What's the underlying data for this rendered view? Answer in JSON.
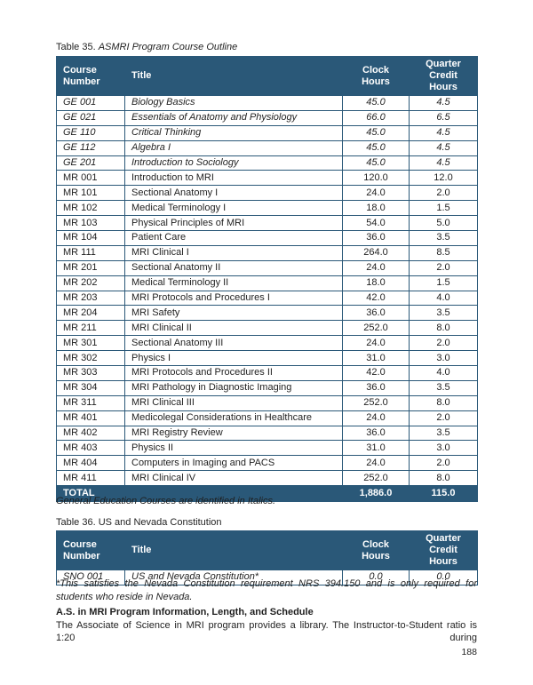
{
  "colors": {
    "header_bg": "#2a5878",
    "header_text": "#ffffff",
    "border": "#2a5878",
    "body_text": "#1f1f1f"
  },
  "table35": {
    "caption_prefix": "Table 35. ",
    "caption_title": "ASMRI Program Course Outline",
    "columns": [
      "Course Number",
      "Title",
      "Clock Hours",
      "Quarter Credit Hours"
    ],
    "rows": [
      {
        "course": "GE 001",
        "title": "Biology Basics",
        "clock": "45.0",
        "credit": "4.5",
        "italic": true
      },
      {
        "course": "GE 021",
        "title": "Essentials of Anatomy and Physiology",
        "clock": "66.0",
        "credit": "6.5",
        "italic": true
      },
      {
        "course": "GE 110",
        "title": "Critical Thinking",
        "clock": "45.0",
        "credit": "4.5",
        "italic": true
      },
      {
        "course": "GE 112",
        "title": "Algebra I",
        "clock": "45.0",
        "credit": "4.5",
        "italic": true
      },
      {
        "course": "GE 201",
        "title": "Introduction to Sociology",
        "clock": "45.0",
        "credit": "4.5",
        "italic": true
      },
      {
        "course": "MR 001",
        "title": "Introduction to MRI",
        "clock": "120.0",
        "credit": "12.0",
        "italic": false
      },
      {
        "course": "MR 101",
        "title": "Sectional Anatomy I",
        "clock": "24.0",
        "credit": "2.0",
        "italic": false
      },
      {
        "course": "MR 102",
        "title": "Medical Terminology I",
        "clock": "18.0",
        "credit": "1.5",
        "italic": false
      },
      {
        "course": "MR 103",
        "title": "Physical Principles of MRI",
        "clock": "54.0",
        "credit": "5.0",
        "italic": false
      },
      {
        "course": "MR 104",
        "title": "Patient Care",
        "clock": "36.0",
        "credit": "3.5",
        "italic": false
      },
      {
        "course": "MR 111",
        "title": "MRI Clinical I",
        "clock": "264.0",
        "credit": "8.5",
        "italic": false
      },
      {
        "course": "MR 201",
        "title": "Sectional Anatomy II",
        "clock": "24.0",
        "credit": "2.0",
        "italic": false
      },
      {
        "course": "MR 202",
        "title": "Medical Terminology II",
        "clock": "18.0",
        "credit": "1.5",
        "italic": false
      },
      {
        "course": "MR 203",
        "title": "MRI Protocols and Procedures I",
        "clock": "42.0",
        "credit": "4.0",
        "italic": false
      },
      {
        "course": "MR 204",
        "title": "MRI Safety",
        "clock": "36.0",
        "credit": "3.5",
        "italic": false
      },
      {
        "course": "MR 211",
        "title": "MRI Clinical II",
        "clock": "252.0",
        "credit": "8.0",
        "italic": false
      },
      {
        "course": "MR 301",
        "title": "Sectional Anatomy III",
        "clock": "24.0",
        "credit": "2.0",
        "italic": false
      },
      {
        "course": "MR 302",
        "title": "Physics I",
        "clock": "31.0",
        "credit": "3.0",
        "italic": false
      },
      {
        "course": "MR 303",
        "title": "MRI Protocols and Procedures II",
        "clock": "42.0",
        "credit": "4.0",
        "italic": false
      },
      {
        "course": "MR 304",
        "title": "MRI Pathology in Diagnostic Imaging",
        "clock": "36.0",
        "credit": "3.5",
        "italic": false
      },
      {
        "course": "MR 311",
        "title": "MRI Clinical III",
        "clock": "252.0",
        "credit": "8.0",
        "italic": false
      },
      {
        "course": "MR 401",
        "title": "Medicolegal Considerations in Healthcare",
        "clock": "24.0",
        "credit": "2.0",
        "italic": false
      },
      {
        "course": "MR 402",
        "title": "MRI Registry Review",
        "clock": "36.0",
        "credit": "3.5",
        "italic": false
      },
      {
        "course": "MR 403",
        "title": "Physics II",
        "clock": "31.0",
        "credit": "3.0",
        "italic": false
      },
      {
        "course": "MR 404",
        "title": "Computers in Imaging and PACS",
        "clock": "24.0",
        "credit": "2.0",
        "italic": false
      },
      {
        "course": "MR 411",
        "title": "MRI Clinical IV",
        "clock": "252.0",
        "credit": "8.0",
        "italic": false
      }
    ],
    "total": {
      "label": "TOTAL",
      "clock": "1,886.0",
      "credit": "115.0"
    },
    "footnote": "General Education Courses are identified in Italics."
  },
  "table36": {
    "caption": "Table 36. US and Nevada Constitution",
    "columns": [
      "Course Number",
      "Title",
      "Clock Hours",
      "Quarter Credit Hours"
    ],
    "rows": [
      {
        "course": "SNO 001",
        "title": "US and Nevada Constitution*",
        "clock": "0.0",
        "credit": "0.0",
        "italic": true
      }
    ],
    "footnote": "*This satisfies the Nevada Constitution requirement NRS 394.150 and is only required for students who reside in Nevada."
  },
  "section": {
    "heading": "A.S. in MRI Program Information, Length, and Schedule",
    "body": "The Associate of Science in MRI program provides a library. The Instructor-to-Student ratio is 1:20 during"
  },
  "page": {
    "number": "188"
  }
}
